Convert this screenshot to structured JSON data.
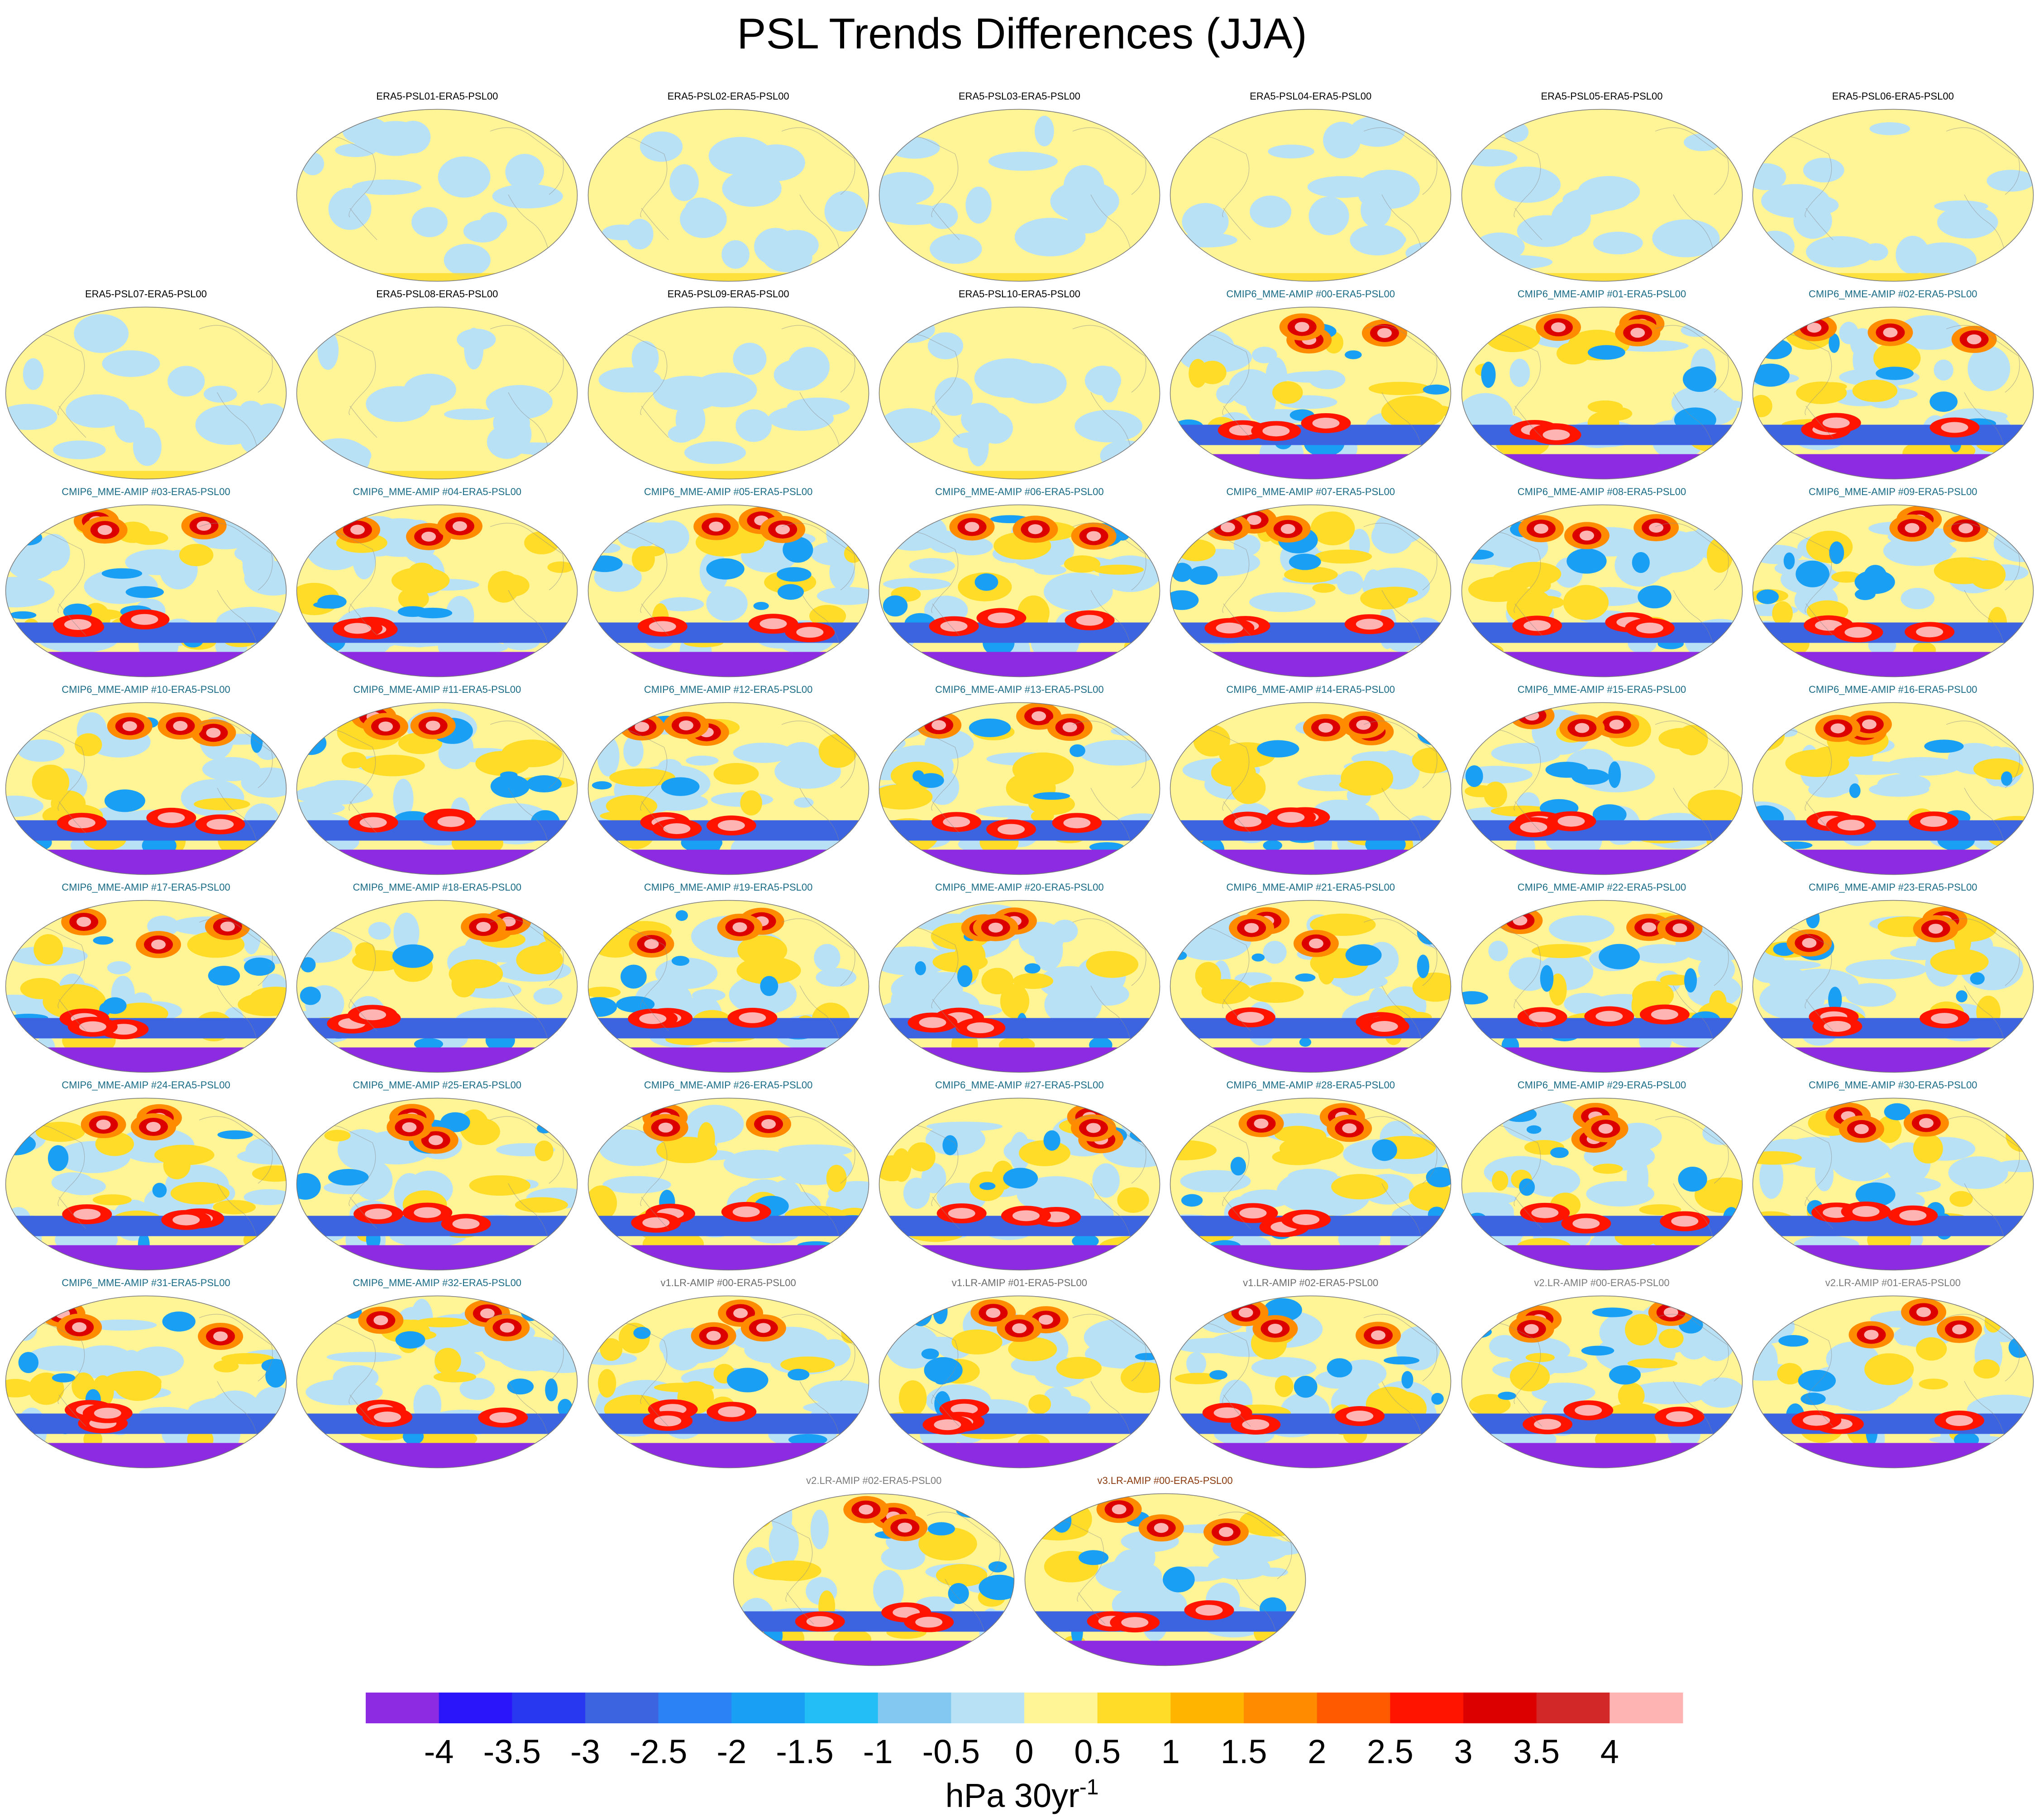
{
  "title": "PSL Trends Differences (JJA)",
  "chart_data": {
    "type": "map-panel-grid",
    "projection": "global ellipse (Robinson-like), Pacific-centered",
    "panels": [
      {
        "label": "ERA5-PSL01-ERA5-PSL00",
        "group": "ERA5",
        "row": 0,
        "col": 1
      },
      {
        "label": "ERA5-PSL02-ERA5-PSL00",
        "group": "ERA5",
        "row": 0,
        "col": 2
      },
      {
        "label": "ERA5-PSL03-ERA5-PSL00",
        "group": "ERA5",
        "row": 0,
        "col": 3
      },
      {
        "label": "ERA5-PSL04-ERA5-PSL00",
        "group": "ERA5",
        "row": 0,
        "col": 4
      },
      {
        "label": "ERA5-PSL05-ERA5-PSL00",
        "group": "ERA5",
        "row": 0,
        "col": 5
      },
      {
        "label": "ERA5-PSL06-ERA5-PSL00",
        "group": "ERA5",
        "row": 0,
        "col": 6
      },
      {
        "label": "ERA5-PSL07-ERA5-PSL00",
        "group": "ERA5",
        "row": 1,
        "col": 0
      },
      {
        "label": "ERA5-PSL08-ERA5-PSL00",
        "group": "ERA5",
        "row": 1,
        "col": 1
      },
      {
        "label": "ERA5-PSL09-ERA5-PSL00",
        "group": "ERA5",
        "row": 1,
        "col": 2
      },
      {
        "label": "ERA5-PSL10-ERA5-PSL00",
        "group": "ERA5",
        "row": 1,
        "col": 3
      },
      {
        "label": "CMIP6_MME-AMIP  #00-ERA5-PSL00",
        "group": "CMIP6",
        "row": 1,
        "col": 4
      },
      {
        "label": "CMIP6_MME-AMIP  #01-ERA5-PSL00",
        "group": "CMIP6",
        "row": 1,
        "col": 5
      },
      {
        "label": "CMIP6_MME-AMIP  #02-ERA5-PSL00",
        "group": "CMIP6",
        "row": 1,
        "col": 6
      },
      {
        "label": "CMIP6_MME-AMIP  #03-ERA5-PSL00",
        "group": "CMIP6",
        "row": 2,
        "col": 0
      },
      {
        "label": "CMIP6_MME-AMIP  #04-ERA5-PSL00",
        "group": "CMIP6",
        "row": 2,
        "col": 1
      },
      {
        "label": "CMIP6_MME-AMIP  #05-ERA5-PSL00",
        "group": "CMIP6",
        "row": 2,
        "col": 2
      },
      {
        "label": "CMIP6_MME-AMIP  #06-ERA5-PSL00",
        "group": "CMIP6",
        "row": 2,
        "col": 3
      },
      {
        "label": "CMIP6_MME-AMIP  #07-ERA5-PSL00",
        "group": "CMIP6",
        "row": 2,
        "col": 4
      },
      {
        "label": "CMIP6_MME-AMIP  #08-ERA5-PSL00",
        "group": "CMIP6",
        "row": 2,
        "col": 5
      },
      {
        "label": "CMIP6_MME-AMIP  #09-ERA5-PSL00",
        "group": "CMIP6",
        "row": 2,
        "col": 6
      },
      {
        "label": "CMIP6_MME-AMIP  #10-ERA5-PSL00",
        "group": "CMIP6",
        "row": 3,
        "col": 0
      },
      {
        "label": "CMIP6_MME-AMIP  #11-ERA5-PSL00",
        "group": "CMIP6",
        "row": 3,
        "col": 1
      },
      {
        "label": "CMIP6_MME-AMIP  #12-ERA5-PSL00",
        "group": "CMIP6",
        "row": 3,
        "col": 2
      },
      {
        "label": "CMIP6_MME-AMIP  #13-ERA5-PSL00",
        "group": "CMIP6",
        "row": 3,
        "col": 3
      },
      {
        "label": "CMIP6_MME-AMIP  #14-ERA5-PSL00",
        "group": "CMIP6",
        "row": 3,
        "col": 4
      },
      {
        "label": "CMIP6_MME-AMIP  #15-ERA5-PSL00",
        "group": "CMIP6",
        "row": 3,
        "col": 5
      },
      {
        "label": "CMIP6_MME-AMIP  #16-ERA5-PSL00",
        "group": "CMIP6",
        "row": 3,
        "col": 6
      },
      {
        "label": "CMIP6_MME-AMIP  #17-ERA5-PSL00",
        "group": "CMIP6",
        "row": 4,
        "col": 0
      },
      {
        "label": "CMIP6_MME-AMIP  #18-ERA5-PSL00",
        "group": "CMIP6",
        "row": 4,
        "col": 1
      },
      {
        "label": "CMIP6_MME-AMIP  #19-ERA5-PSL00",
        "group": "CMIP6",
        "row": 4,
        "col": 2
      },
      {
        "label": "CMIP6_MME-AMIP  #20-ERA5-PSL00",
        "group": "CMIP6",
        "row": 4,
        "col": 3
      },
      {
        "label": "CMIP6_MME-AMIP  #21-ERA5-PSL00",
        "group": "CMIP6",
        "row": 4,
        "col": 4
      },
      {
        "label": "CMIP6_MME-AMIP  #22-ERA5-PSL00",
        "group": "CMIP6",
        "row": 4,
        "col": 5
      },
      {
        "label": "CMIP6_MME-AMIP  #23-ERA5-PSL00",
        "group": "CMIP6",
        "row": 4,
        "col": 6
      },
      {
        "label": "CMIP6_MME-AMIP  #24-ERA5-PSL00",
        "group": "CMIP6",
        "row": 5,
        "col": 0
      },
      {
        "label": "CMIP6_MME-AMIP  #25-ERA5-PSL00",
        "group": "CMIP6",
        "row": 5,
        "col": 1
      },
      {
        "label": "CMIP6_MME-AMIP  #26-ERA5-PSL00",
        "group": "CMIP6",
        "row": 5,
        "col": 2
      },
      {
        "label": "CMIP6_MME-AMIP  #27-ERA5-PSL00",
        "group": "CMIP6",
        "row": 5,
        "col": 3
      },
      {
        "label": "CMIP6_MME-AMIP  #28-ERA5-PSL00",
        "group": "CMIP6",
        "row": 5,
        "col": 4
      },
      {
        "label": "CMIP6_MME-AMIP  #29-ERA5-PSL00",
        "group": "CMIP6",
        "row": 5,
        "col": 5
      },
      {
        "label": "CMIP6_MME-AMIP  #30-ERA5-PSL00",
        "group": "CMIP6",
        "row": 5,
        "col": 6
      },
      {
        "label": "CMIP6_MME-AMIP  #31-ERA5-PSL00",
        "group": "CMIP6",
        "row": 6,
        "col": 0
      },
      {
        "label": "CMIP6_MME-AMIP  #32-ERA5-PSL00",
        "group": "CMIP6",
        "row": 6,
        "col": 1
      },
      {
        "label": "v1.LR-AMIP  #00-ERA5-PSL00",
        "group": "v1",
        "row": 6,
        "col": 2
      },
      {
        "label": "v1.LR-AMIP  #01-ERA5-PSL00",
        "group": "v1",
        "row": 6,
        "col": 3
      },
      {
        "label": "v1.LR-AMIP  #02-ERA5-PSL00",
        "group": "v1",
        "row": 6,
        "col": 4
      },
      {
        "label": "v2.LR-AMIP  #00-ERA5-PSL00",
        "group": "v2",
        "row": 6,
        "col": 5
      },
      {
        "label": "v2.LR-AMIP  #01-ERA5-PSL00",
        "group": "v2",
        "row": 6,
        "col": 6
      },
      {
        "label": "v2.LR-AMIP  #02-ERA5-PSL00",
        "group": "v2",
        "row": 7,
        "col": 2.5
      },
      {
        "label": "v3.LR-AMIP  #00-ERA5-PSL00",
        "group": "v3",
        "row": 7,
        "col": 3.5
      }
    ],
    "group_title_colors": {
      "ERA5": "#000000",
      "CMIP6": "#1a6b86",
      "v1": "#6b6b6b",
      "v2": "#7a7a7a",
      "v3": "#8b3a0f"
    },
    "colorbar": {
      "levels": [
        "-4",
        "-3.5",
        "-3",
        "-2.5",
        "-2",
        "-1.5",
        "-1",
        "-0.5",
        "0",
        "0.5",
        "1",
        "1.5",
        "2",
        "2.5",
        "3",
        "3.5",
        "4"
      ],
      "colors": [
        "#8c2be2",
        "#2a14fa",
        "#2838f0",
        "#3c64e0",
        "#2a82f5",
        "#19a0f5",
        "#23bef5",
        "#82c8f0",
        "#b9e1f5",
        "#fff596",
        "#ffdc28",
        "#ffb400",
        "#ff8c00",
        "#ff5a00",
        "#ff1400",
        "#dc0000",
        "#d22828",
        "#ffb4b4"
      ],
      "units_base": "hPa 30yr",
      "units_exponent": "-1"
    }
  }
}
